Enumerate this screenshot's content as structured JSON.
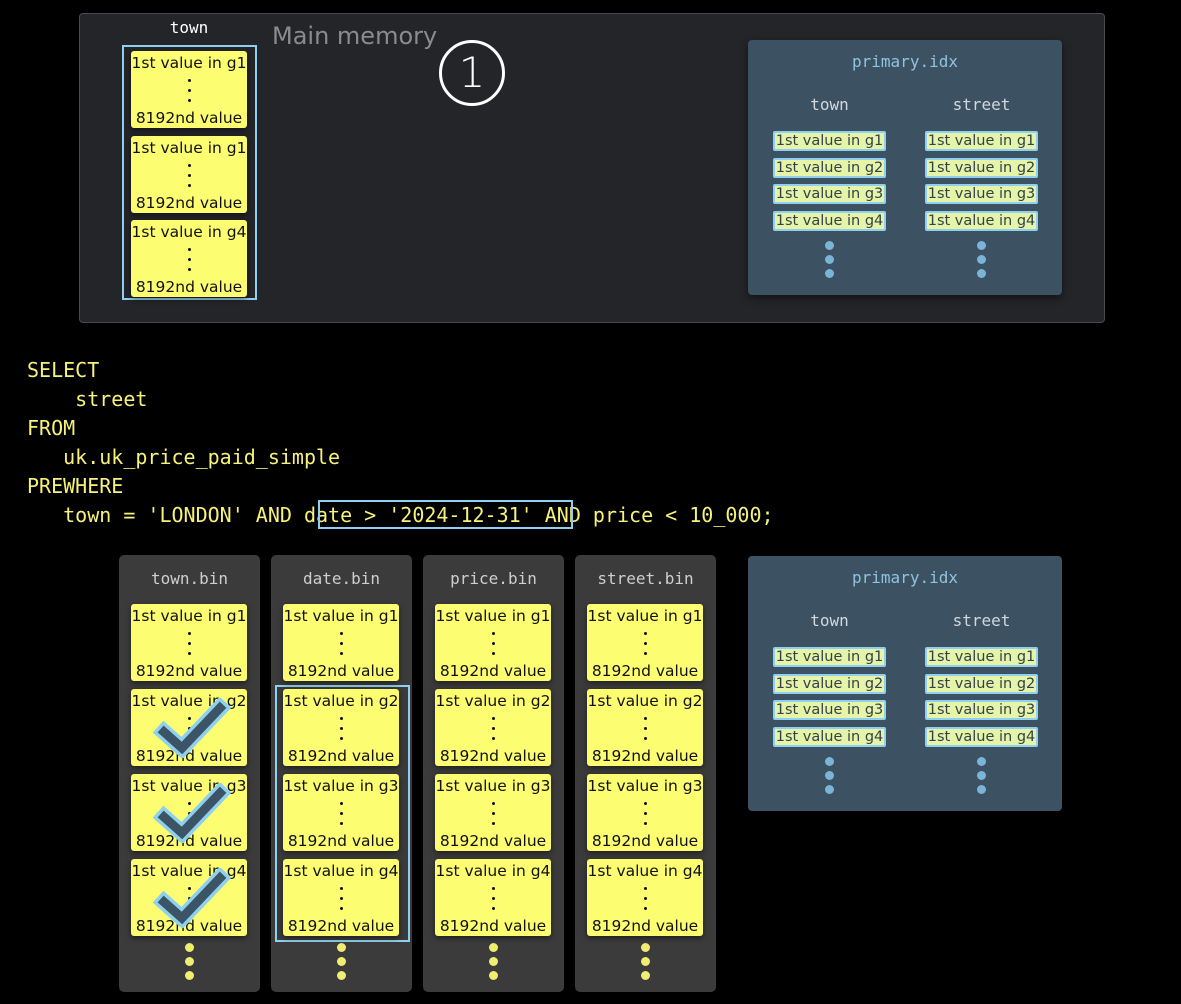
{
  "main_memory": {
    "title": "Main memory",
    "column_label": "town",
    "step_marker": "1",
    "granules": [
      {
        "first": "1st value in g1",
        "last": "8192nd value"
      },
      {
        "first": "1st value in g1",
        "last": "8192nd value"
      },
      {
        "first": "1st value in g4",
        "last": "8192nd value"
      }
    ]
  },
  "primary_index": {
    "title": "primary.idx",
    "columns": [
      {
        "name": "town",
        "entries": [
          "1st value in g1",
          "1st value in g2",
          "1st value in g3",
          "1st value in g4"
        ]
      },
      {
        "name": "street",
        "entries": [
          "1st value in g1",
          "1st value in g2",
          "1st value in g3",
          "1st value in g4"
        ]
      }
    ]
  },
  "query": {
    "lines": [
      "SELECT",
      "    street",
      "FROM",
      "   uk.uk_price_paid_simple",
      "PREWHERE",
      "   town = 'LONDON' AND date > '2024-12-31' AND price < 10_000;"
    ],
    "highlighted": "date > '2024-12-31'"
  },
  "files": [
    {
      "name": "town.bin",
      "checked": [
        false,
        true,
        true,
        true
      ]
    },
    {
      "name": "date.bin",
      "checked": [
        false,
        false,
        false,
        false
      ]
    },
    {
      "name": "price.bin",
      "checked": [
        false,
        false,
        false,
        false
      ]
    },
    {
      "name": "street.bin",
      "checked": [
        false,
        false,
        false,
        false
      ]
    }
  ],
  "granule_labels": {
    "first": [
      "1st value in g1",
      "1st value in g2",
      "1st value in g3",
      "1st value in g4"
    ],
    "last": "8192nd value"
  },
  "colors": {
    "granule": "#fdfd72",
    "highlight": "#8fd0f0",
    "index_bg": "#3c5262",
    "sql_text": "#f6f27a",
    "check": "#3b5466"
  }
}
